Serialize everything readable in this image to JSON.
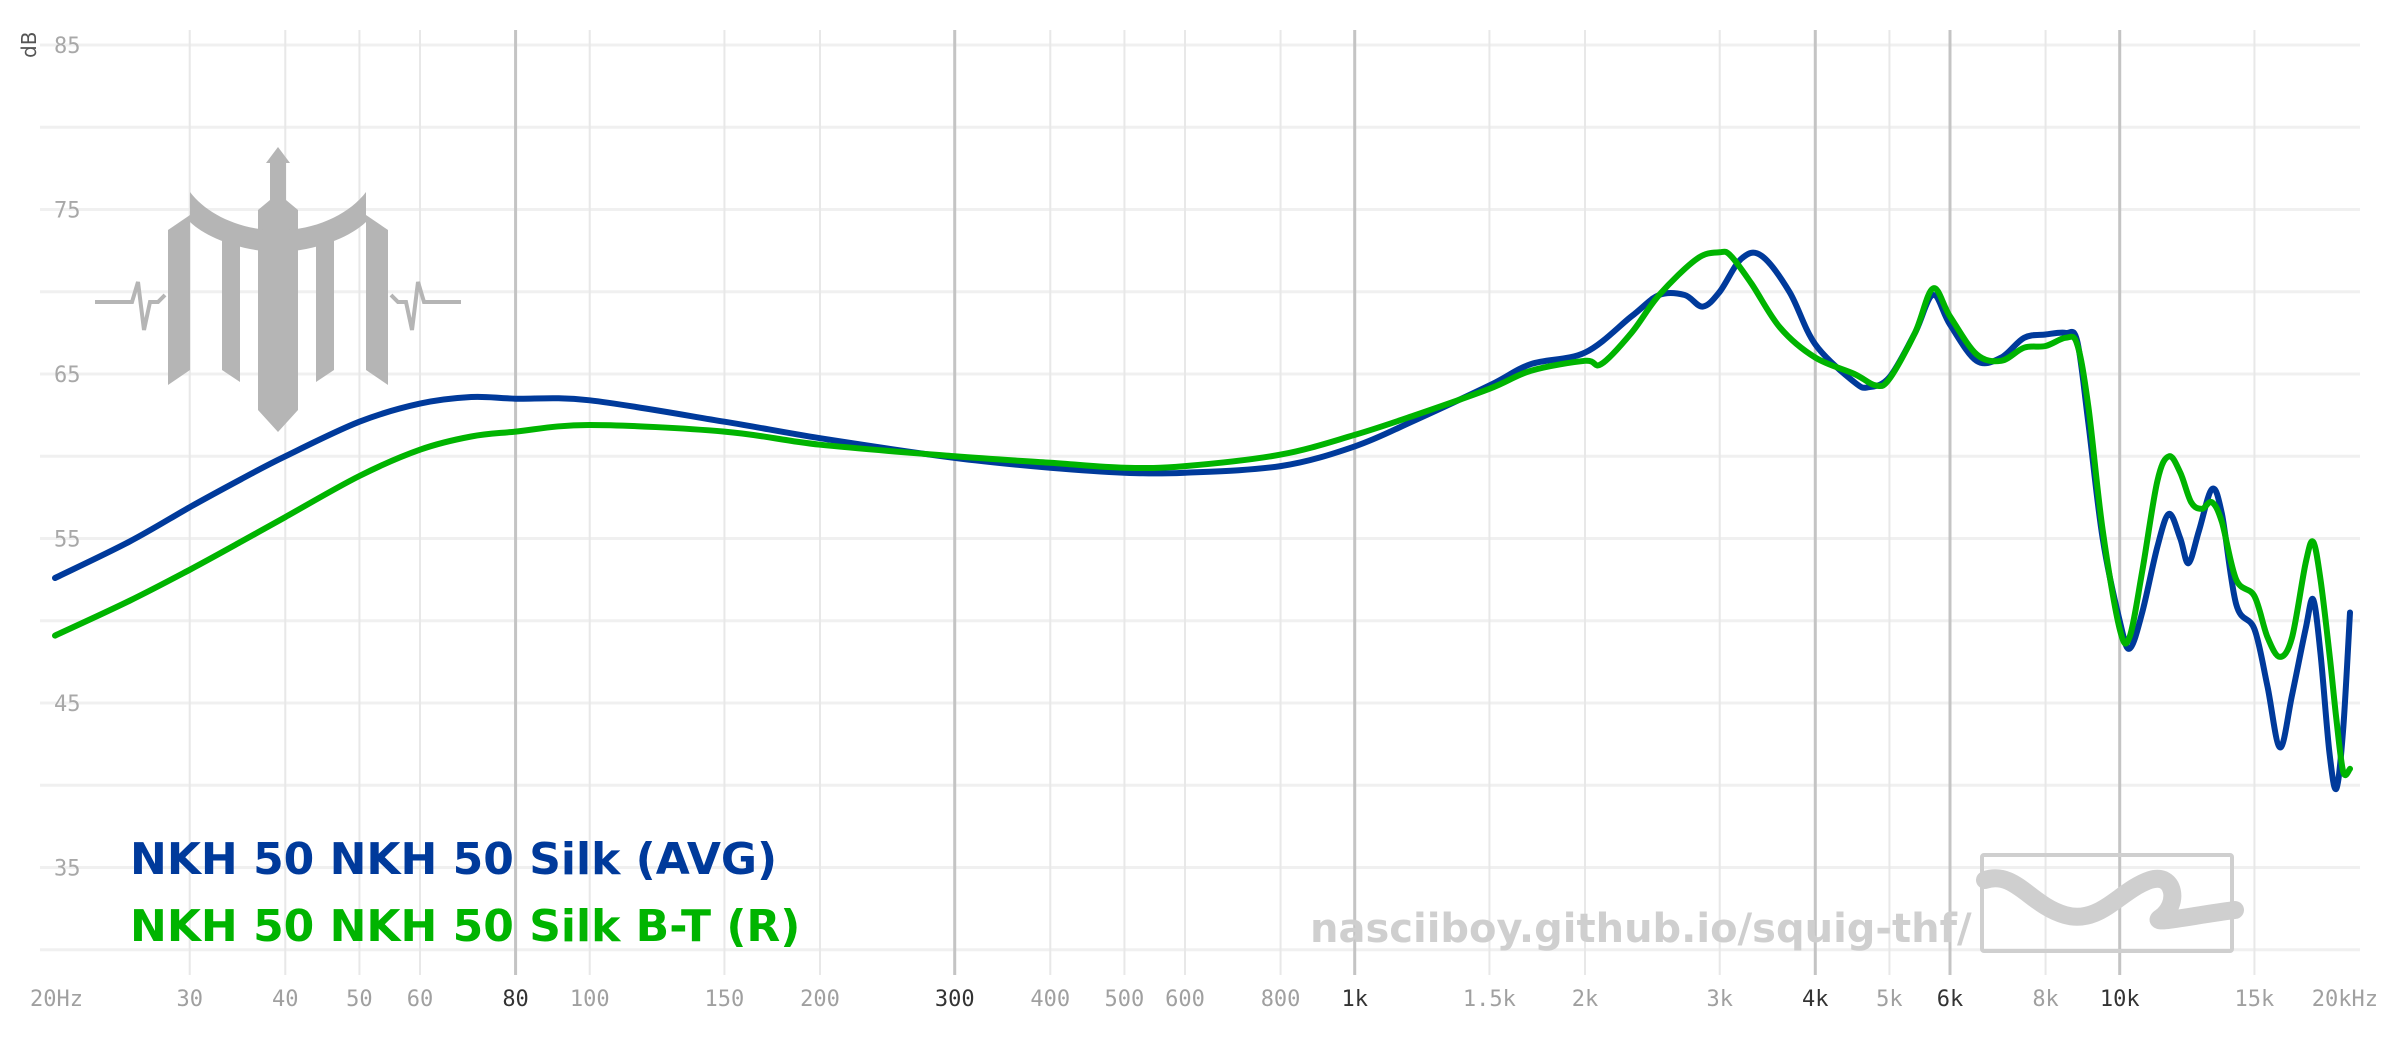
{
  "chart_data": {
    "type": "line",
    "title": "",
    "ylabel": "dB",
    "xlabel": "",
    "x_scale": "log",
    "xlim": [
      20,
      20000
    ],
    "ylim": [
      30,
      87
    ],
    "grid": true,
    "x_ticks": [
      {
        "value": 20,
        "label": "20Hz",
        "major": false
      },
      {
        "value": 30,
        "label": "30",
        "major": false
      },
      {
        "value": 40,
        "label": "40",
        "major": false
      },
      {
        "value": 50,
        "label": "50",
        "major": false
      },
      {
        "value": 60,
        "label": "60",
        "major": false
      },
      {
        "value": 80,
        "label": "80",
        "major": true
      },
      {
        "value": 100,
        "label": "100",
        "major": false
      },
      {
        "value": 150,
        "label": "150",
        "major": false
      },
      {
        "value": 200,
        "label": "200",
        "major": false
      },
      {
        "value": 300,
        "label": "300",
        "major": true
      },
      {
        "value": 400,
        "label": "400",
        "major": false
      },
      {
        "value": 500,
        "label": "500",
        "major": false
      },
      {
        "value": 600,
        "label": "600",
        "major": false
      },
      {
        "value": 800,
        "label": "800",
        "major": false
      },
      {
        "value": 1000,
        "label": "1k",
        "major": true
      },
      {
        "value": 1500,
        "label": "1.5k",
        "major": false
      },
      {
        "value": 2000,
        "label": "2k",
        "major": false
      },
      {
        "value": 3000,
        "label": "3k",
        "major": false
      },
      {
        "value": 4000,
        "label": "4k",
        "major": true
      },
      {
        "value": 5000,
        "label": "5k",
        "major": false
      },
      {
        "value": 6000,
        "label": "6k",
        "major": true
      },
      {
        "value": 8000,
        "label": "8k",
        "major": false
      },
      {
        "value": 10000,
        "label": "10k",
        "major": true
      },
      {
        "value": 15000,
        "label": "15k",
        "major": false
      },
      {
        "value": 20000,
        "label": "20kHz",
        "major": false
      }
    ],
    "y_ticks": [
      {
        "value": 85,
        "label": "85"
      },
      {
        "value": 75,
        "label": "75"
      },
      {
        "value": 65,
        "label": "65"
      },
      {
        "value": 55,
        "label": "55"
      },
      {
        "value": 45,
        "label": "45"
      },
      {
        "value": 35,
        "label": "35"
      }
    ],
    "series": [
      {
        "name": "NKH 50 NKH 50 Silk (AVG)",
        "color": "#003a9b",
        "points": [
          [
            20,
            52.6
          ],
          [
            25,
            54.8
          ],
          [
            30,
            56.9
          ],
          [
            35,
            58.6
          ],
          [
            40,
            60.0
          ],
          [
            50,
            62.1
          ],
          [
            60,
            63.2
          ],
          [
            70,
            63.6
          ],
          [
            80,
            63.5
          ],
          [
            100,
            63.4
          ],
          [
            150,
            62.1
          ],
          [
            200,
            61.1
          ],
          [
            300,
            59.9
          ],
          [
            400,
            59.3
          ],
          [
            500,
            59.0
          ],
          [
            600,
            59.0
          ],
          [
            800,
            59.4
          ],
          [
            1000,
            60.6
          ],
          [
            1200,
            62.2
          ],
          [
            1500,
            64.3
          ],
          [
            1700,
            65.6
          ],
          [
            2000,
            66.3
          ],
          [
            2300,
            68.5
          ],
          [
            2500,
            69.8
          ],
          [
            2700,
            69.8
          ],
          [
            2850,
            69.1
          ],
          [
            3000,
            70.0
          ],
          [
            3200,
            72.0
          ],
          [
            3400,
            72.2
          ],
          [
            3700,
            70.0
          ],
          [
            4000,
            66.8
          ],
          [
            4500,
            64.5
          ],
          [
            4700,
            64.2
          ],
          [
            5000,
            64.8
          ],
          [
            5400,
            67.5
          ],
          [
            5700,
            69.8
          ],
          [
            6000,
            68.0
          ],
          [
            6500,
            65.8
          ],
          [
            7000,
            66.0
          ],
          [
            7500,
            67.2
          ],
          [
            8000,
            67.4
          ],
          [
            8500,
            67.5
          ],
          [
            8800,
            67.0
          ],
          [
            9100,
            62.0
          ],
          [
            9500,
            55.0
          ],
          [
            10000,
            50.0
          ],
          [
            10300,
            48.3
          ],
          [
            10700,
            50.5
          ],
          [
            11200,
            54.5
          ],
          [
            11600,
            56.5
          ],
          [
            12000,
            55.0
          ],
          [
            12300,
            53.5
          ],
          [
            12700,
            55.5
          ],
          [
            13200,
            58.0
          ],
          [
            13600,
            56.5
          ],
          [
            14200,
            51.0
          ],
          [
            15000,
            49.5
          ],
          [
            15600,
            46.0
          ],
          [
            16200,
            42.3
          ],
          [
            16800,
            45.5
          ],
          [
            17500,
            49.5
          ],
          [
            17900,
            51.3
          ],
          [
            18300,
            48.0
          ],
          [
            18800,
            42.0
          ],
          [
            19200,
            39.8
          ],
          [
            19600,
            43.5
          ],
          [
            20000,
            50.5
          ]
        ]
      },
      {
        "name": "NKH 50 NKH 50 Silk B-T (R)",
        "color": "#00b400",
        "points": [
          [
            20,
            49.1
          ],
          [
            25,
            51.2
          ],
          [
            30,
            53.1
          ],
          [
            35,
            54.8
          ],
          [
            40,
            56.3
          ],
          [
            50,
            58.8
          ],
          [
            60,
            60.4
          ],
          [
            70,
            61.2
          ],
          [
            80,
            61.5
          ],
          [
            100,
            61.9
          ],
          [
            150,
            61.5
          ],
          [
            200,
            60.7
          ],
          [
            300,
            60.0
          ],
          [
            400,
            59.6
          ],
          [
            500,
            59.3
          ],
          [
            600,
            59.4
          ],
          [
            800,
            60.1
          ],
          [
            1000,
            61.3
          ],
          [
            1200,
            62.5
          ],
          [
            1500,
            64.1
          ],
          [
            1700,
            65.2
          ],
          [
            2000,
            65.8
          ],
          [
            2100,
            65.6
          ],
          [
            2300,
            67.5
          ],
          [
            2500,
            69.8
          ],
          [
            2800,
            72.0
          ],
          [
            3000,
            72.4
          ],
          [
            3100,
            72.2
          ],
          [
            3300,
            70.5
          ],
          [
            3600,
            67.8
          ],
          [
            4000,
            66.0
          ],
          [
            4500,
            65.0
          ],
          [
            4800,
            64.3
          ],
          [
            5000,
            64.7
          ],
          [
            5400,
            67.5
          ],
          [
            5700,
            70.2
          ],
          [
            6000,
            68.5
          ],
          [
            6500,
            66.2
          ],
          [
            7000,
            65.8
          ],
          [
            7500,
            66.6
          ],
          [
            8000,
            66.7
          ],
          [
            8500,
            67.2
          ],
          [
            8800,
            66.8
          ],
          [
            9100,
            63.0
          ],
          [
            9500,
            55.5
          ],
          [
            10000,
            49.5
          ],
          [
            10300,
            49.0
          ],
          [
            10700,
            53.0
          ],
          [
            11200,
            58.5
          ],
          [
            11600,
            60.0
          ],
          [
            12000,
            59.0
          ],
          [
            12400,
            57.2
          ],
          [
            12800,
            56.8
          ],
          [
            13200,
            57.2
          ],
          [
            13600,
            56.0
          ],
          [
            14200,
            52.5
          ],
          [
            15000,
            51.5
          ],
          [
            15600,
            49.0
          ],
          [
            16200,
            47.8
          ],
          [
            16800,
            49.0
          ],
          [
            17500,
            53.5
          ],
          [
            17900,
            54.8
          ],
          [
            18300,
            52.5
          ],
          [
            18800,
            48.0
          ],
          [
            19200,
            44.0
          ],
          [
            19600,
            40.8
          ],
          [
            20000,
            41.0
          ]
        ]
      }
    ]
  },
  "watermark": {
    "url": "nasciiboy.github.io/squig-thf/"
  }
}
